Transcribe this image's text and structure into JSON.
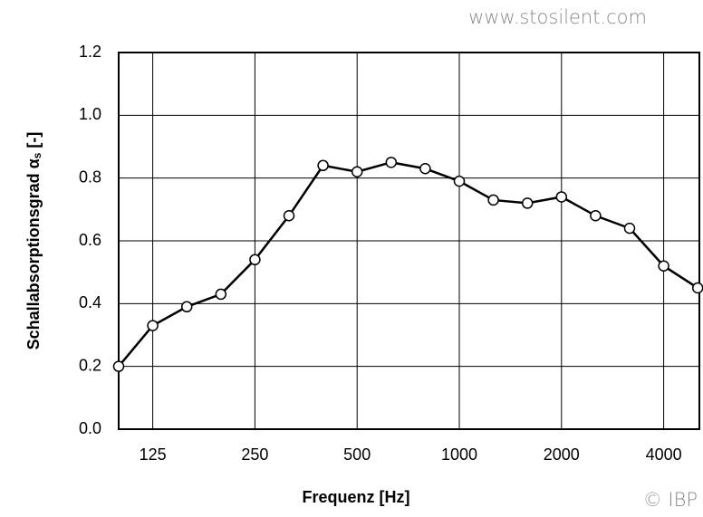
{
  "chart_data": {
    "type": "line",
    "watermark_top": "www.stosilent.com",
    "watermark_bottom": "© IBP",
    "x_label": "Frequenz [Hz]",
    "y_label": {
      "text": "Schallabsorptionsgrad α",
      "subscript": "s",
      "suffix": " [-]"
    },
    "categories": [
      null,
      "125",
      null,
      null,
      "250",
      null,
      null,
      "500",
      null,
      null,
      "1000",
      null,
      null,
      "2000",
      null,
      null,
      "4000",
      null
    ],
    "series": [
      {
        "name": null,
        "color": "#000000",
        "values": [
          0.2,
          0.33,
          0.39,
          0.43,
          0.54,
          0.68,
          0.84,
          0.82,
          0.85,
          0.83,
          0.79,
          0.73,
          0.72,
          0.74,
          0.68,
          0.64,
          0.52,
          0.45
        ]
      }
    ],
    "ylim": [
      0,
      1.2
    ],
    "yticks": [
      {
        "value": 0,
        "label": "0.0"
      },
      0.2,
      0.4,
      0.6,
      0.8,
      {
        "value": 1,
        "label": "1.0"
      },
      1.2
    ],
    "grid": true
  }
}
